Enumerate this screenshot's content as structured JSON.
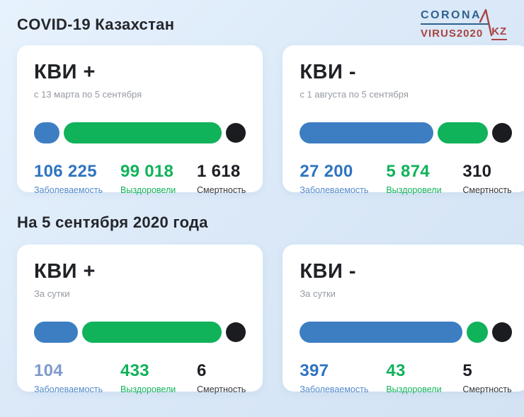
{
  "page": {
    "title": "COVID-19 Казахстан",
    "section_title": "На 5 сентября 2020 года"
  },
  "logo": {
    "line1": "CORONA",
    "line2": "VIRUS2020",
    "suffix": "KZ",
    "blue": "#30618e",
    "red": "#a94440"
  },
  "colors": {
    "background": "#dbe9f8",
    "card": "#ffffff",
    "blue_pill": "#3d7ec3",
    "green_pill": "#10b25a",
    "black_dot": "#1b1c20",
    "infected_text": "#2e74c0",
    "infected_muted_text": "#7e9bcb",
    "infected_label": "#4f88cb",
    "recovered_text": "#10b25a",
    "deaths_text": "#1d1f24",
    "deaths_label": "#34363c",
    "title_text": "#202227",
    "subtitle_text": "#959aa3"
  },
  "labels": {
    "infected": "Заболеваемость",
    "recovered": "Выздоровели",
    "deaths": "Смертность"
  },
  "cards": [
    {
      "title": "КВИ +",
      "subtitle": "с 13 марта по 5 сентября",
      "infected": "106 225",
      "recovered": "99 018",
      "deaths": "1 618",
      "infected_color": "#2e74c0",
      "bar": {
        "blue_pct": 12,
        "green_pct": 74
      }
    },
    {
      "title": "КВИ -",
      "subtitle": "с 1 августа по 5 сентября",
      "infected": "27 200",
      "recovered": "5 874",
      "deaths": "310",
      "infected_color": "#2e74c0",
      "bar": {
        "blue_pct": 64,
        "green_pct": 24
      }
    },
    {
      "title": "КВИ +",
      "subtitle": "За сутки",
      "infected": "104",
      "recovered": "433",
      "deaths": "6",
      "infected_color": "#7e9bcb",
      "bar": {
        "blue_pct": 21,
        "green_pct": 67
      }
    },
    {
      "title": "КВИ -",
      "subtitle": "За сутки",
      "infected": "397",
      "recovered": "43",
      "deaths": "5",
      "infected_color": "#2e74c0",
      "bar": {
        "blue_pct": 77,
        "green_pct": 10
      }
    }
  ]
}
